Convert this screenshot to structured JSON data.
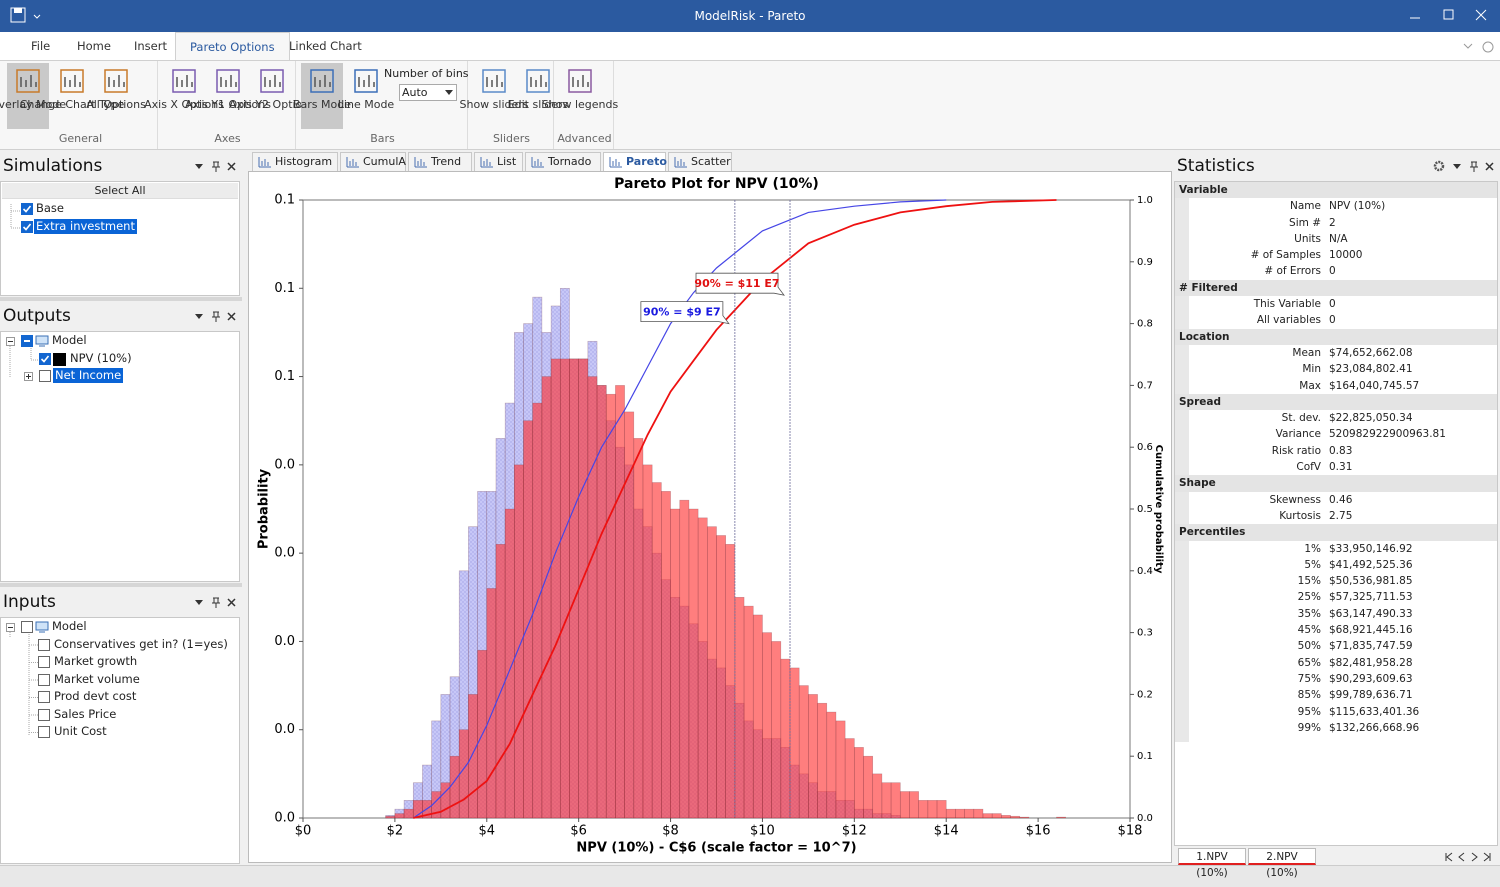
{
  "window": {
    "title": "ModelRisk - Pareto"
  },
  "ribbon": {
    "tabs": [
      "File",
      "Home",
      "Insert",
      "Pareto Options",
      "Linked Chart"
    ],
    "active_tab": 3,
    "groups": [
      {
        "name": "General",
        "buttons": [
          "Overlay Mode",
          "Change Chart Type",
          "All Options"
        ],
        "pressed": 0
      },
      {
        "name": "Axes",
        "buttons": [
          "Axis X Options",
          "Axis Y1 Options",
          "Axis Y2 Options"
        ]
      },
      {
        "name": "Bars",
        "buttons": [
          "Bars Mode",
          "Line Mode"
        ],
        "pressed": 0,
        "bins_label": "Number of bins",
        "bins_value": "Auto"
      },
      {
        "name": "Sliders",
        "buttons": [
          "Show sliders",
          "Edit sliders"
        ]
      },
      {
        "name": "Advanced",
        "buttons": [
          "Show legends"
        ]
      }
    ]
  },
  "simulations": {
    "title": "Simulations",
    "select_all": "Select All",
    "items": [
      {
        "label": "Base",
        "checked": true
      },
      {
        "label": "Extra investment",
        "checked": true,
        "selected": true
      }
    ]
  },
  "outputs": {
    "title": "Outputs",
    "root": "Model",
    "items": [
      {
        "label": "NPV (10%)",
        "checked": true,
        "swatch": "#000000"
      },
      {
        "label": "Net Income",
        "checked": false,
        "selected": true
      }
    ]
  },
  "inputs": {
    "title": "Inputs",
    "root": "Model",
    "items": [
      "Conservatives get in? (1=yes)",
      "Market growth",
      "Market volume",
      "Prod devt cost",
      "Sales Price",
      "Unit Cost"
    ]
  },
  "chart_tabs": {
    "tabs": [
      "Histogram",
      "CumulA",
      "Trend",
      "List",
      "Tornado",
      "Pareto",
      "Scatter"
    ],
    "active": 5
  },
  "chart_data": {
    "type": "histogram",
    "title": "Pareto Plot for NPV (10%)",
    "x_label": "NPV (10%) - C$6 (scale factor = 10^7)",
    "y_label": "Probability",
    "y2_label": "Cumulative probability",
    "xlim": [
      0,
      18
    ],
    "xticks": [
      {
        "value": 0,
        "label": "$0"
      },
      {
        "value": 2,
        "label": "$2"
      },
      {
        "value": 4,
        "label": "$4"
      },
      {
        "value": 6,
        "label": "$6"
      },
      {
        "value": 8,
        "label": "$8"
      },
      {
        "value": 10,
        "label": "$10"
      },
      {
        "value": 12,
        "label": "$12"
      },
      {
        "value": 14,
        "label": "$14"
      },
      {
        "value": 16,
        "label": "$16"
      },
      {
        "value": 18,
        "label": "$18"
      }
    ],
    "ylim": [
      0,
      0.07
    ],
    "yticks": [
      {
        "value": 0,
        "label": "0.0"
      },
      {
        "value": 0.01,
        "label": "0.0"
      },
      {
        "value": 0.02,
        "label": "0.0"
      },
      {
        "value": 0.03,
        "label": "0.0"
      },
      {
        "value": 0.04,
        "label": "0.0"
      },
      {
        "value": 0.05,
        "label": "0.1"
      },
      {
        "value": 0.06,
        "label": "0.1"
      },
      {
        "value": 0.07,
        "label": "0.1"
      }
    ],
    "y2lim": [
      0,
      1
    ],
    "y2ticks": [
      {
        "value": 0,
        "label": "0.0"
      },
      0.1,
      0.2,
      0.3,
      0.4,
      0.5,
      0.6,
      0.7,
      0.8,
      0.9,
      {
        "value": 1,
        "label": "1.0"
      }
    ],
    "bins": [
      1.8,
      2,
      2.2,
      2.4,
      2.6,
      2.8,
      3,
      3.2,
      3.4,
      3.6,
      3.8,
      4,
      4.2,
      4.4,
      4.6,
      4.8,
      5,
      5.2,
      5.4,
      5.6,
      5.8,
      6,
      6.2,
      6.4,
      6.6,
      6.8,
      7,
      7.2,
      7.4,
      7.6,
      7.8,
      8,
      8.2,
      8.4,
      8.6,
      8.8,
      9,
      9.2,
      9.4,
      9.6,
      9.8,
      10,
      10.2,
      10.4,
      10.6,
      10.8,
      11,
      11.2,
      11.4,
      11.6,
      11.8,
      12,
      12.2,
      12.4,
      12.6,
      12.8,
      13,
      13.2,
      13.4,
      13.6,
      13.8,
      14,
      14.2,
      14.4,
      14.6,
      14.8,
      15,
      15.2,
      15.4,
      15.6,
      15.8,
      16,
      16.2,
      16.4,
      16.6,
      16.8
    ],
    "series": [
      {
        "name": "2.NPV (10%)",
        "color": "#b4b4f4",
        "pattern": "hatch",
        "opacity": 0.75,
        "values": [
          0.0003,
          0.001,
          0.002,
          0.004,
          0.006,
          0.011,
          0.014,
          0.016,
          0.028,
          0.033,
          0.037,
          0.037,
          0.043,
          0.047,
          0.055,
          0.056,
          0.059,
          0.055,
          0.058,
          0.06,
          0.052,
          0.052,
          0.054,
          0.049,
          0.045,
          0.042,
          0.04,
          0.035,
          0.033,
          0.03,
          0.027,
          0.025,
          0.024,
          0.022,
          0.02,
          0.018,
          0.017,
          0.015,
          0.013,
          0.011,
          0.01,
          0.009,
          0.009,
          0.008,
          0.006,
          0.005,
          0.004,
          0.003,
          0.003,
          0.002,
          0.002,
          0.001,
          0.001,
          0.0005,
          0.0005,
          0.0003,
          0,
          0,
          0,
          0,
          0,
          0,
          0,
          0,
          0,
          0,
          0,
          0,
          0,
          0,
          0,
          0,
          0,
          0,
          0
        ]
      },
      {
        "name": "1.NPV (10%)",
        "color": "#ff2e2e",
        "opacity": 0.62,
        "values": [
          0.0002,
          0.0005,
          0.001,
          0.002,
          0.002,
          0.003,
          0.004,
          0.007,
          0.01,
          0.014,
          0.019,
          0.026,
          0.031,
          0.035,
          0.04,
          0.045,
          0.047,
          0.05,
          0.052,
          0.052,
          0.052,
          0.052,
          0.05,
          0.049,
          0.048,
          0.049,
          0.046,
          0.043,
          0.04,
          0.038,
          0.037,
          0.035,
          0.036,
          0.035,
          0.034,
          0.033,
          0.032,
          0.031,
          0.025,
          0.024,
          0.023,
          0.021,
          0.02,
          0.018,
          0.017,
          0.015,
          0.014,
          0.013,
          0.012,
          0.011,
          0.009,
          0.008,
          0.007,
          0.005,
          0.004,
          0.004,
          0.003,
          0.003,
          0.002,
          0.002,
          0.002,
          0.001,
          0.001,
          0.001,
          0.001,
          0.0005,
          0.0005,
          0.0003,
          0.0002,
          0.0001,
          0,
          0,
          0,
          0.0001,
          0
        ]
      }
    ],
    "lines": [
      {
        "color": "#4646e6",
        "axis": "y2",
        "x": [
          2.4,
          2.8,
          3.2,
          3.6,
          4,
          4.5,
          5,
          5.5,
          6,
          6.5,
          7,
          7.5,
          8,
          8.5,
          9,
          9.5,
          10,
          11,
          12,
          13,
          14
        ],
        "values": [
          0,
          0.02,
          0.05,
          0.09,
          0.15,
          0.24,
          0.33,
          0.43,
          0.52,
          0.6,
          0.66,
          0.73,
          0.8,
          0.85,
          0.89,
          0.92,
          0.95,
          0.98,
          0.99,
          0.997,
          1
        ]
      },
      {
        "color": "#ee1111",
        "axis": "y2",
        "x": [
          2.4,
          3,
          3.5,
          4,
          4.5,
          5,
          5.5,
          6,
          6.5,
          7,
          7.5,
          8,
          8.5,
          9,
          9.5,
          10,
          10.5,
          11,
          12,
          13,
          14,
          15,
          16.4
        ],
        "values": [
          0,
          0.01,
          0.03,
          0.06,
          0.12,
          0.2,
          0.28,
          0.37,
          0.46,
          0.54,
          0.62,
          0.69,
          0.74,
          0.79,
          0.83,
          0.87,
          0.9,
          0.93,
          0.96,
          0.98,
          0.99,
          0.997,
          1
        ]
      }
    ],
    "annotations": [
      {
        "text": "90% = $9 E7",
        "color": "#1a1ae0",
        "x": 9.4,
        "y": 0.8
      },
      {
        "text": "90% = $11 E7",
        "color": "#e01010",
        "x": 10.6,
        "y": 0.846
      }
    ]
  },
  "statistics": {
    "title": "Statistics",
    "sections": [
      {
        "name": "Variable",
        "rows": [
          [
            "Name",
            "NPV (10%)"
          ],
          [
            "Sim #",
            "2"
          ],
          [
            "Units",
            "N/A"
          ],
          [
            "# of Samples",
            "10000"
          ],
          [
            "# of Errors",
            "0"
          ]
        ]
      },
      {
        "name": "# Filtered",
        "rows": [
          [
            "This Variable",
            "0"
          ],
          [
            "All variables",
            "0"
          ]
        ]
      },
      {
        "name": "Location",
        "rows": [
          [
            "Mean",
            "$74,652,662.08"
          ],
          [
            "Min",
            "$23,084,802.41"
          ],
          [
            "Max",
            "$164,040,745.57"
          ]
        ]
      },
      {
        "name": "Spread",
        "rows": [
          [
            "St. dev.",
            "$22,825,050.34"
          ],
          [
            "Variance",
            "520982922900963.81"
          ],
          [
            "Risk ratio",
            "0.83"
          ],
          [
            "CofV",
            "0.31"
          ]
        ]
      },
      {
        "name": "Shape",
        "rows": [
          [
            "Skewness",
            "0.46"
          ],
          [
            "Kurtosis",
            "2.75"
          ]
        ]
      },
      {
        "name": "Percentiles",
        "rows": [
          [
            "1%",
            "$33,950,146.92"
          ],
          [
            "5%",
            "$41,492,525.36"
          ],
          [
            "15%",
            "$50,536,981.85"
          ],
          [
            "25%",
            "$57,325,711.53"
          ],
          [
            "35%",
            "$63,147,490.33"
          ],
          [
            "45%",
            "$68,921,445.16"
          ],
          [
            "50%",
            "$71,835,747.59"
          ],
          [
            "65%",
            "$82,481,958.28"
          ],
          [
            "75%",
            "$90,293,609.63"
          ],
          [
            "85%",
            "$99,789,636.71"
          ],
          [
            "95%",
            "$115,633,401.36"
          ],
          [
            "99%",
            "$132,266,668.96"
          ]
        ]
      }
    ]
  }
}
